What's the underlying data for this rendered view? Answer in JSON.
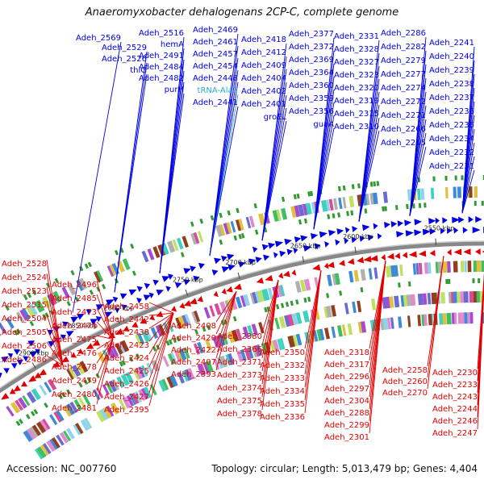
{
  "title": "Anaeromyxobacter dehalogenans 2CP-C, complete genome",
  "footer": {
    "accession": "Accession: NC_007760",
    "summary": "Topology: circular; Length: 5,013,479 bp; Genes: 4,404"
  },
  "colors": {
    "forward": "#0000e0",
    "reverse": "#e00000",
    "trna": "#2aaed0",
    "backbone": "#888888",
    "tick": "#339933"
  },
  "ruler_ticks": [
    "2900 kbp",
    "2850 kbp",
    "2800 kbp",
    "2750 kbp",
    "2700 kbp",
    "2650 kbp",
    "2600 kbp",
    "2550 kbp"
  ],
  "forward_labels": [
    "Adeh_2569",
    "Adeh_2529",
    "Adeh_2526",
    "thiG",
    "Adeh_2516",
    "hemA",
    "Adeh_2491",
    "Adeh_2484",
    "Adeh_2482",
    "purH",
    "Adeh_2469",
    "Adeh_2461",
    "Adeh_2457",
    "Adeh_2454",
    "Adeh_2448",
    "tRNA-Ala3",
    "Adeh_2441",
    "Adeh_2418",
    "Adeh_2412",
    "Adeh_2409",
    "Adeh_2404",
    "Adeh_2402",
    "Adeh_2401",
    "groEL",
    "Adeh_2377",
    "Adeh_2372",
    "Adeh_2369",
    "Adeh_2364",
    "Adeh_2360",
    "Adeh_2359",
    "Adeh_2356",
    "guaA",
    "Adeh_2331",
    "Adeh_2328",
    "Adeh_2327",
    "Adeh_2323",
    "Adeh_2320",
    "Adeh_2319",
    "Adeh_2315",
    "Adeh_2310",
    "Adeh_2286",
    "Adeh_2282",
    "Adeh_2279",
    "Adeh_2277",
    "Adeh_2274",
    "Adeh_2272",
    "Adeh_2271",
    "Adeh_2266",
    "Adeh_2265",
    "Adeh_2241",
    "Adeh_2240",
    "Adeh_2239",
    "Adeh_2238",
    "Adeh_2237",
    "Adeh_2236",
    "Adeh_2235",
    "Adeh_2234",
    "Adeh_2232",
    "Adeh_2231"
  ],
  "reverse_labels": [
    "Adeh_2528",
    "Adeh_2524",
    "Adeh_2523",
    "Adeh_2515",
    "Adeh_2504",
    "Adeh_2505",
    "Adeh_2506",
    "Adeh_2486",
    "Adeh_2496",
    "Adeh_2485",
    "Adeh_2473",
    "Adeh_2474",
    "Adeh_2475",
    "Adeh_2476",
    "Adeh_2478",
    "Adeh_2479",
    "Adeh_2480",
    "Adeh_2481",
    "Adeh_2458",
    "Adeh_2442",
    "Adeh_2438",
    "Adeh_2423",
    "Adeh_2424",
    "Adeh_2425",
    "Adeh_2426",
    "Adeh_2427",
    "Adeh_2395",
    "Adeh_2408",
    "Adeh_2420",
    "Adeh_2422",
    "Adeh_2407",
    "Adeh_2393",
    "Adeh_2380",
    "Adeh_2366",
    "Adeh_2371",
    "Adeh_2373",
    "Adeh_2374",
    "Adeh_2375",
    "Adeh_2378",
    "Adeh_2350",
    "Adeh_2332",
    "Adeh_2333",
    "Adeh_2334",
    "Adeh_2335",
    "Adeh_2336",
    "Adeh_2318",
    "Adeh_2317",
    "Adeh_2296",
    "Adeh_2297",
    "Adeh_2304",
    "Adeh_2288",
    "Adeh_2299",
    "Adeh_2301",
    "Adeh_2258",
    "Adeh_2260",
    "Adeh_2270",
    "Adeh_2230",
    "Adeh_2233",
    "Adeh_2243",
    "Adeh_2244",
    "Adeh_2246",
    "Adeh_2247"
  ]
}
